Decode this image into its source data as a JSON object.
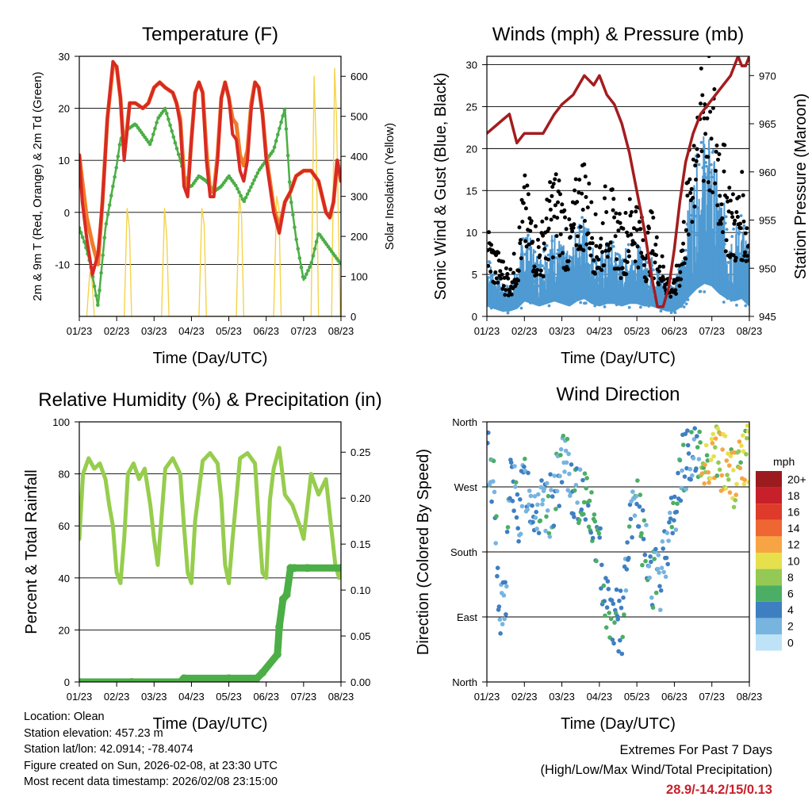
{
  "footer": {
    "location": "Location: Olean",
    "elevation": "Station elevation: 457.23 m",
    "latlon": "Station lat/lon: 42.0914; -78.4074",
    "created": "Figure created on Sun, 2026-02-08, at 23:30 UTC",
    "latest": "Most recent data timestamp: 2026/02/08 23:15:00",
    "extremes_title": "Extremes For Past 7 Days",
    "extremes_sub": "(High/Low/Max Wind/Total Precipitation)",
    "extremes_values": "28.9/-14.2/15/0.13"
  },
  "colors": {
    "temp2m": "#d82a23",
    "temp9m": "#f07c2a",
    "dewpoint": "#4cae46",
    "solar": "#f5d34a",
    "gust": "#000000",
    "sonic": "#4f9ad2",
    "pressure": "#a31d1f",
    "rh": "#96cd4d",
    "precip": "#4cae46"
  },
  "chart_data": [
    {
      "id": "temperature",
      "type": "line",
      "title": "Temperature (F)",
      "xlabel": "Time (Day/UTC)",
      "ylabel": "2m & 9m T (Red, Orange) & 2m Td (Green)",
      "y2label": "Solar Insolation (Yellow)",
      "x_ticks": [
        "01/23",
        "02/23",
        "03/23",
        "04/23",
        "05/23",
        "06/23",
        "07/23",
        "08/23"
      ],
      "xlim": [
        0,
        7
      ],
      "ylim": [
        -20,
        30
      ],
      "y_ticks": [
        -10,
        0,
        10,
        20,
        30
      ],
      "y2lim": [
        0,
        650
      ],
      "y2_ticks": [
        0,
        100,
        200,
        300,
        400,
        500,
        600
      ],
      "series": [
        {
          "name": "2m T",
          "x": [
            0,
            0.08,
            0.2,
            0.35,
            0.5,
            0.62,
            0.75,
            0.9,
            1.0,
            1.1,
            1.2,
            1.35,
            1.5,
            1.7,
            1.85,
            2.0,
            2.15,
            2.3,
            2.5,
            2.6,
            2.7,
            2.8,
            2.9,
            3.0,
            3.1,
            3.2,
            3.3,
            3.4,
            3.5,
            3.6,
            3.7,
            3.8,
            3.9,
            4.0,
            4.1,
            4.2,
            4.3,
            4.4,
            4.5,
            4.6,
            4.7,
            4.8,
            4.9,
            5.0,
            5.1,
            5.2,
            5.35,
            5.5,
            5.65,
            5.8,
            6.0,
            6.2,
            6.4,
            6.6,
            6.7,
            6.8,
            6.9,
            7.0
          ],
          "y": [
            11,
            2,
            -5,
            -12,
            -8,
            2,
            18,
            29,
            28,
            22,
            10,
            21,
            21,
            20,
            21,
            24,
            25,
            24,
            23,
            21,
            17,
            5,
            3,
            14,
            23,
            25,
            23,
            10,
            3,
            3,
            10,
            22,
            25,
            22,
            15,
            14,
            8,
            6,
            10,
            20,
            25,
            24,
            19,
            10,
            5,
            0,
            -4,
            2,
            4,
            7,
            8,
            8,
            6,
            0,
            -1,
            2,
            10,
            6
          ]
        },
        {
          "name": "9m T",
          "x": [
            0,
            0.08,
            0.2,
            0.35,
            0.5,
            0.62,
            0.75,
            0.9,
            1.0,
            1.1,
            1.2,
            1.35,
            1.5,
            1.7,
            1.85,
            2.0,
            2.15,
            2.3,
            2.5,
            2.6,
            2.7,
            2.8,
            2.9,
            3.0,
            3.1,
            3.2,
            3.3,
            3.4,
            3.5,
            3.6,
            3.7,
            3.8,
            3.9,
            4.0,
            4.1,
            4.2,
            4.3,
            4.4,
            4.5,
            4.6,
            4.7,
            4.8,
            4.9,
            5.0,
            5.1,
            5.2,
            5.35,
            5.5,
            5.65,
            5.8,
            6.0,
            6.2,
            6.4,
            6.6,
            6.7,
            6.8,
            6.9,
            7.0
          ],
          "y": [
            11,
            6,
            -1,
            -6,
            -10,
            2,
            18,
            28,
            28,
            22,
            11,
            21,
            21,
            20,
            21,
            24,
            25,
            24,
            23,
            21,
            18,
            7,
            4,
            14,
            23,
            25,
            23,
            12,
            4,
            4,
            11,
            22,
            25,
            22,
            18,
            17,
            11,
            9,
            12,
            21,
            25,
            24,
            19,
            11,
            6,
            1,
            -3,
            2,
            4,
            7,
            8,
            8,
            6,
            0,
            -1,
            2,
            10,
            6
          ]
        },
        {
          "name": "2m Td",
          "x": [
            0,
            0.15,
            0.3,
            0.5,
            0.7,
            0.9,
            1.0,
            1.1,
            1.3,
            1.5,
            1.7,
            1.9,
            2.1,
            2.3,
            2.5,
            2.7,
            2.9,
            3.0,
            3.2,
            3.4,
            3.6,
            3.8,
            4.0,
            4.2,
            4.4,
            4.6,
            4.8,
            5.0,
            5.2,
            5.35,
            5.5,
            5.65,
            5.8,
            6.0,
            6.2,
            6.4,
            6.6,
            6.8,
            7.0
          ],
          "y": [
            -3,
            -6,
            -10,
            -18,
            -3,
            5,
            9,
            14,
            16,
            17,
            15,
            13,
            18,
            20,
            15,
            10,
            5,
            5,
            7,
            6,
            4,
            5,
            7,
            5,
            2,
            5,
            8,
            10,
            12,
            16,
            20,
            3,
            -5,
            -13,
            -10,
            -4,
            -6,
            -8,
            -10
          ]
        },
        {
          "name": "Solar Insolation",
          "axis": "y2",
          "x": [
            0.2,
            0.28,
            0.34,
            0.4,
            1.2,
            1.28,
            1.34,
            1.4,
            2.2,
            2.28,
            2.34,
            2.4,
            3.2,
            3.28,
            3.34,
            3.4,
            4.2,
            4.28,
            4.34,
            4.4,
            5.2,
            5.28,
            5.34,
            5.4,
            6.2,
            6.28,
            6.34,
            6.4,
            6.75,
            6.83,
            6.88,
            6.92,
            6.98
          ],
          "y": [
            0,
            110,
            90,
            0,
            0,
            270,
            220,
            0,
            0,
            270,
            200,
            0,
            0,
            270,
            230,
            0,
            0,
            300,
            250,
            0,
            0,
            300,
            270,
            0,
            0,
            600,
            420,
            0,
            0,
            620,
            500,
            300,
            0
          ]
        }
      ]
    },
    {
      "id": "winds",
      "type": "scatter",
      "title": "Winds (mph) & Pressure (mb)",
      "xlabel": "Time (Day/UTC)",
      "ylabel": "Sonic Wind & Gust (Blue, Black)",
      "y2label": "Station Pressure (Maroon)",
      "x_ticks": [
        "01/23",
        "02/23",
        "03/23",
        "04/23",
        "05/23",
        "06/23",
        "07/23",
        "08/23"
      ],
      "xlim": [
        0,
        7
      ],
      "ylim": [
        0,
        31
      ],
      "y_ticks": [
        0,
        5,
        10,
        15,
        20,
        25,
        30
      ],
      "y2lim": [
        945,
        972
      ],
      "y2_ticks": [
        945,
        950,
        955,
        960,
        965,
        970
      ],
      "series": [
        {
          "name": "Gust",
          "x": [
            0,
            0.2,
            0.4,
            0.6,
            0.8,
            1.0,
            1.2,
            1.4,
            1.6,
            1.8,
            2.0,
            2.2,
            2.4,
            2.6,
            2.8,
            3.0,
            3.2,
            3.4,
            3.6,
            3.8,
            4.0,
            4.2,
            4.4,
            4.6,
            4.8,
            5.0,
            5.2,
            5.4,
            5.6,
            5.8,
            6.0,
            6.2,
            6.4,
            6.6,
            6.8,
            7.0
          ],
          "y": [
            8,
            6,
            5,
            4,
            6,
            12,
            9,
            7,
            10,
            13,
            11,
            8,
            12,
            14,
            10,
            7,
            12,
            10,
            8,
            10,
            11,
            7,
            9,
            6,
            4,
            3,
            7,
            14,
            22,
            25,
            22,
            17,
            13,
            10,
            12,
            8
          ]
        },
        {
          "name": "Sonic Wind",
          "x": [
            0,
            0.2,
            0.4,
            0.6,
            0.8,
            1.0,
            1.2,
            1.4,
            1.6,
            1.8,
            2.0,
            2.2,
            2.4,
            2.6,
            2.8,
            3.0,
            3.2,
            3.4,
            3.6,
            3.8,
            4.0,
            4.2,
            4.4,
            4.6,
            4.8,
            5.0,
            5.2,
            5.4,
            5.6,
            5.8,
            6.0,
            6.2,
            6.4,
            6.6,
            6.8,
            7.0
          ],
          "y": [
            4,
            3,
            2,
            2,
            3,
            6,
            5,
            4,
            5,
            6,
            5,
            4,
            6,
            7,
            5,
            4,
            5,
            5,
            4,
            5,
            5,
            4,
            4,
            3,
            2,
            2,
            4,
            8,
            11,
            13,
            12,
            9,
            7,
            6,
            7,
            4
          ]
        },
        {
          "name": "Station Pressure",
          "axis": "y2",
          "x": [
            0,
            0.3,
            0.6,
            0.8,
            1.0,
            1.2,
            1.5,
            1.8,
            2.0,
            2.3,
            2.6,
            2.85,
            3.0,
            3.2,
            3.4,
            3.6,
            3.8,
            4.0,
            4.2,
            4.4,
            4.55,
            4.7,
            4.85,
            5.0,
            5.15,
            5.3,
            5.5,
            5.7,
            5.9,
            6.1,
            6.3,
            6.5,
            6.7,
            6.8,
            6.9,
            7.0
          ],
          "y": [
            964,
            965,
            966,
            963,
            964,
            964,
            964,
            966,
            967,
            968,
            970,
            969,
            970,
            968,
            967,
            965,
            962,
            958,
            954,
            949,
            946,
            946,
            948,
            952,
            957,
            961,
            964,
            966,
            967,
            968,
            969,
            970,
            972,
            971,
            971,
            972
          ]
        }
      ]
    },
    {
      "id": "humidity",
      "type": "line",
      "title": "Relative Humidity (%) & Precipitation (in)",
      "xlabel": "Time (Day/UTC)",
      "ylabel": "Percent & Total Rainfall",
      "x_ticks": [
        "01/23",
        "02/23",
        "03/23",
        "04/23",
        "05/23",
        "06/23",
        "07/23",
        "08/23"
      ],
      "xlim": [
        0,
        7
      ],
      "ylim": [
        0,
        100
      ],
      "y_ticks": [
        0,
        20,
        40,
        60,
        80,
        100
      ],
      "y2lim": [
        0,
        0.283
      ],
      "y2_ticks": [
        "0.00",
        "0.05",
        "0.10",
        "0.15",
        "0.20",
        "0.25"
      ],
      "series": [
        {
          "name": "Relative Humidity",
          "x": [
            0,
            0.1,
            0.25,
            0.4,
            0.55,
            0.7,
            0.8,
            0.9,
            1.0,
            1.1,
            1.2,
            1.3,
            1.45,
            1.6,
            1.75,
            1.9,
            2.0,
            2.1,
            2.3,
            2.5,
            2.7,
            2.8,
            2.9,
            3.0,
            3.1,
            3.3,
            3.5,
            3.7,
            3.8,
            3.9,
            4.0,
            4.1,
            4.3,
            4.5,
            4.7,
            4.8,
            4.9,
            5.0,
            5.1,
            5.2,
            5.35,
            5.5,
            5.7,
            5.9,
            6.0,
            6.2,
            6.4,
            6.6,
            6.75,
            6.85,
            6.95,
            7.0
          ],
          "y": [
            55,
            80,
            86,
            82,
            84,
            78,
            68,
            60,
            42,
            38,
            55,
            80,
            84,
            78,
            82,
            68,
            55,
            45,
            82,
            86,
            80,
            60,
            42,
            38,
            62,
            85,
            88,
            84,
            70,
            45,
            38,
            55,
            86,
            88,
            84,
            62,
            42,
            40,
            70,
            82,
            90,
            72,
            68,
            60,
            55,
            80,
            72,
            78,
            58,
            45,
            40,
            42
          ]
        },
        {
          "name": "Precipitation",
          "axis": "y2",
          "x": [
            0,
            1.4,
            2.7,
            2.8,
            4.0,
            4.75,
            4.9,
            5.3,
            5.35,
            5.45,
            5.55,
            5.65,
            5.75,
            6.1,
            7.0
          ],
          "y": [
            0,
            0,
            0,
            0.004,
            0.004,
            0.004,
            0.01,
            0.03,
            0.06,
            0.09,
            0.095,
            0.124,
            0.124,
            0.124,
            0.124
          ]
        }
      ]
    },
    {
      "id": "direction",
      "type": "scatter",
      "title": "Wind Direction",
      "xlabel": "Time (Day/UTC)",
      "ylabel": "Direction (Colored By Speed)",
      "x_ticks": [
        "01/23",
        "02/23",
        "03/23",
        "04/23",
        "05/23",
        "06/23",
        "07/23",
        "08/23"
      ],
      "xlim": [
        0,
        7
      ],
      "ylim": [
        0,
        360
      ],
      "y_ticks": [
        "North",
        "East",
        "South",
        "West",
        "North"
      ],
      "colorbar": {
        "title": "mph",
        "labels": [
          "20+",
          "18",
          "16",
          "14",
          "12",
          "10",
          "8",
          "6",
          "4",
          "2",
          "0"
        ],
        "colors": [
          "#9b1b1e",
          "#c8202a",
          "#de3b2a",
          "#ee6632",
          "#f7a544",
          "#e7e04d",
          "#93c954",
          "#4cae64",
          "#3e7fc1",
          "#77b4e0",
          "#bee3f7"
        ]
      },
      "series": [
        {
          "name": "Wind Direction",
          "x": [
            0.05,
            0.1,
            0.2,
            0.3,
            0.4,
            0.5,
            0.6,
            0.7,
            0.8,
            0.9,
            1.0,
            1.2,
            1.4,
            1.6,
            1.8,
            2.0,
            2.2,
            2.4,
            2.6,
            2.8,
            3.0,
            3.2,
            3.4,
            3.6,
            3.8,
            4.0,
            4.2,
            4.4,
            4.6,
            4.8,
            5.0,
            5.2,
            5.4,
            5.6,
            5.8,
            6.0,
            6.2,
            6.4,
            6.6,
            6.8,
            6.95
          ],
          "y": [
            310,
            280,
            300,
            100,
            90,
            120,
            270,
            280,
            230,
            240,
            280,
            250,
            240,
            230,
            260,
            300,
            290,
            250,
            270,
            220,
            180,
            110,
            90,
            80,
            200,
            260,
            180,
            150,
            130,
            200,
            230,
            300,
            320,
            310,
            300,
            320,
            310,
            300,
            280,
            320,
            310
          ]
        }
      ]
    }
  ]
}
